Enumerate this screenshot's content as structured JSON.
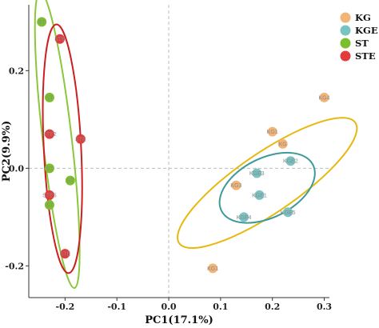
{
  "chart_data": {
    "type": "scatter",
    "xlabel": "PC1(17.1%)",
    "ylabel": "PC2(9.9%)",
    "xlim": [
      -0.27,
      0.31
    ],
    "ylim": [
      -0.265,
      0.335
    ],
    "xticks": [
      "-0.2",
      "-0.1",
      "0.0",
      "0.1",
      "0.2",
      "0.3"
    ],
    "yticks": [
      "-0.2",
      "0.0",
      "0.2"
    ],
    "xtick_values": [
      -0.2,
      -0.1,
      0.0,
      0.1,
      0.2,
      0.3
    ],
    "ytick_values": [
      -0.2,
      0.0,
      0.2
    ],
    "zero_lines": true,
    "legend_position": "right",
    "series": [
      {
        "name": "KG",
        "color": "#f2b477",
        "points": [
          {
            "label": "KG4",
            "x": 0.3,
            "y": 0.145
          },
          {
            "label": "KG1",
            "x": 0.2,
            "y": 0.075
          },
          {
            "label": "KG",
            "x": 0.22,
            "y": 0.05
          },
          {
            "label": "KG3",
            "x": 0.13,
            "y": -0.035
          },
          {
            "label": "KG1",
            "x": 0.085,
            "y": -0.205
          }
        ],
        "ellipse": {
          "cx": 0.19,
          "cy": -0.03,
          "rx": 0.21,
          "ry": 0.06,
          "angle_deg": 36,
          "color": "#e8b810"
        }
      },
      {
        "name": "KGE",
        "color": "#79c3c3",
        "points": [
          {
            "label": "KGE2",
            "x": 0.235,
            "y": 0.015
          },
          {
            "label": "KGE3",
            "x": 0.17,
            "y": -0.01
          },
          {
            "label": "KGE1",
            "x": 0.175,
            "y": -0.055
          },
          {
            "label": "KGE5",
            "x": 0.23,
            "y": -0.09
          },
          {
            "label": "KGE4",
            "x": 0.145,
            "y": -0.1
          }
        ],
        "ellipse": {
          "cx": 0.19,
          "cy": -0.04,
          "rx": 0.1,
          "ry": 0.06,
          "angle_deg": 28,
          "color": "#3e9a9a"
        }
      },
      {
        "name": "ST",
        "color": "#7dbe2e",
        "points": [
          {
            "label": "ST",
            "x": -0.245,
            "y": 0.3
          },
          {
            "label": "ST",
            "x": -0.23,
            "y": 0.145
          },
          {
            "label": "ST",
            "x": -0.23,
            "y": 0.0
          },
          {
            "label": "ST",
            "x": -0.19,
            "y": -0.025
          },
          {
            "label": "ST",
            "x": -0.23,
            "y": -0.075
          }
        ],
        "ellipse": {
          "cx": -0.215,
          "cy": 0.058,
          "rx": 0.028,
          "ry": 0.305,
          "angle_deg": 7,
          "color": "#8bc73a"
        }
      },
      {
        "name": "STE",
        "color": "#e23b3b",
        "points": [
          {
            "label": "STE",
            "x": -0.21,
            "y": 0.265
          },
          {
            "label": "STE2",
            "x": -0.23,
            "y": 0.07
          },
          {
            "label": "STE",
            "x": -0.17,
            "y": 0.06
          },
          {
            "label": "STE5",
            "x": -0.23,
            "y": -0.055
          },
          {
            "label": "STE",
            "x": -0.2,
            "y": -0.175
          }
        ],
        "ellipse": {
          "cx": -0.205,
          "cy": 0.04,
          "rx": 0.036,
          "ry": 0.255,
          "angle_deg": 3,
          "color": "#cc1f1f"
        }
      }
    ]
  }
}
